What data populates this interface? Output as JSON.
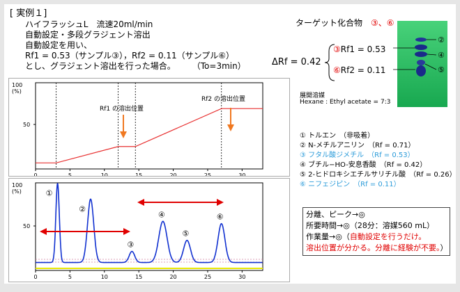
{
  "section_title": "[ 実例１]",
  "conditions": [
    "ハイフラッシュL　流速20ml/min",
    "自動設定・多段グラジェント溶出",
    "自動設定を用い、",
    "Rf1 = 0.53（サンプル③），Rf2 = 0.11（サンプル⑥）",
    "とし、グラジェント溶出を行った場合。　　　（To=3min）"
  ],
  "gradient_chart": {
    "ylabel_top": "100",
    "ylabel_unit": "(%)",
    "y_ticks": [
      "100",
      "50",
      "0"
    ],
    "x_ticks": [
      "0",
      "5",
      "10",
      "15",
      "20",
      "25",
      "30"
    ],
    "annotation_rf1": "Rf1 の溶出位置",
    "annotation_rf2": "Rf2 の溶出位置",
    "colors": {
      "line": "#e83030",
      "arrow": "#f07820",
      "grid": "#000000"
    }
  },
  "chromatogram": {
    "ylabel_top": "100",
    "ylabel_unit": "(%)",
    "y_ticks": [
      "100",
      "50",
      "0"
    ],
    "x_ticks": [
      "0",
      "5",
      "10",
      "15",
      "20",
      "25",
      "30"
    ],
    "peak_labels": [
      "①",
      "②",
      "③",
      "④",
      "⑤",
      "⑥"
    ],
    "colors": {
      "trace": "#1030d0",
      "arrow": "#e00000",
      "baseline": "#e8e800"
    }
  },
  "chart_data": {
    "type": "line",
    "series": [
      {
        "values_gradient": [
          [
            0,
            7
          ],
          [
            3,
            7
          ],
          [
            12,
            26
          ],
          [
            14.5,
            26
          ],
          [
            27,
            70
          ],
          [
            33,
            70
          ]
        ]
      }
    ],
    "peaks": [
      {
        "label": "①",
        "x": 3.2,
        "height": 100
      },
      {
        "label": "②",
        "x": 8,
        "height": 80
      },
      {
        "label": "③",
        "x": 14,
        "height": 14
      },
      {
        "label": "④",
        "x": 18.5,
        "height": 52
      },
      {
        "label": "⑤",
        "x": 22,
        "height": 28
      },
      {
        "label": "⑥",
        "x": 27,
        "height": 49
      }
    ],
    "xlim": [
      0,
      33
    ],
    "ylim": [
      0,
      100
    ]
  },
  "tlc": {
    "title": "ターゲット化合物",
    "targets": "③、⑥",
    "delta_rf": "ΔRf = 0.42",
    "rf1_label": "Rf1 = 0.53",
    "rf1_mark": "③",
    "rf2_label": "Rf2 = 0.11",
    "rf2_mark": "⑥",
    "spot_labels": [
      "②",
      "④",
      "⑤"
    ],
    "solvent_title": "展開溶媒",
    "solvent": "Hexane : Ethyl acetate = 7:3",
    "colors": {
      "plate": "#1fb85a",
      "spot": "#1a2a8a"
    }
  },
  "compounds": [
    {
      "text": "① トルエン　（非吸着）",
      "highlight": false
    },
    {
      "text": "② N-メチルアニリン　（Rf = 0.71）",
      "highlight": false
    },
    {
      "text": "③ フタル酸ジメチル　（Rf = 0.53）",
      "highlight": true
    },
    {
      "text": "④ ブチル−HO-安息香酸　（Rf = 0.42）",
      "highlight": false
    },
    {
      "text": "⑤ 2-ヒドロキシエチルサリチル酸　（Rf = 0.26）",
      "highlight": false
    },
    {
      "text": "⑥ ニフェジピン　（Rf = 0.11）",
      "highlight": true
    }
  ],
  "summary": {
    "line1": "分離、ピーク→◎",
    "line2": "所要時間→◎（28分：溶媒560 mL）",
    "line3_a": "作業量→◎（",
    "line3_b": "自動設定を行うだけ。",
    "line4_a": "溶出位置が分かる。分離に経験が不要。",
    "line4_b": "）"
  }
}
